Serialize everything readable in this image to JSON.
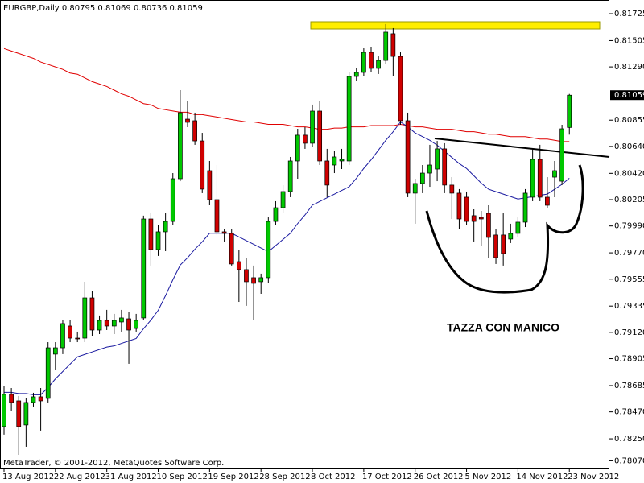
{
  "chart_data": {
    "type": "candlestick",
    "title": "EURGBP,Daily  0.80795 0.81069 0.80736 0.81059",
    "copyright": "MetaTrader, © 2001-2012, MetaQuotes Software Corp.",
    "annotation": "TAZZA CON MANICO",
    "last_price": 0.81059,
    "up_color": "#00c800",
    "down_color": "#d00000",
    "categories": [
      "13 Aug 2012",
      null,
      null,
      null,
      null,
      null,
      null,
      "22 Aug 2012",
      null,
      null,
      null,
      null,
      null,
      null,
      "31 Aug 2012",
      null,
      null,
      null,
      null,
      null,
      null,
      "10 Sep 2012",
      null,
      null,
      null,
      null,
      null,
      null,
      "19 Sep 2012",
      null,
      null,
      null,
      null,
      null,
      null,
      "28 Sep 2012",
      null,
      null,
      null,
      null,
      null,
      null,
      "8 Oct 2012",
      null,
      null,
      null,
      null,
      null,
      null,
      "17 Oct 2012",
      null,
      null,
      null,
      null,
      null,
      null,
      "26 Oct 2012",
      null,
      null,
      null,
      null,
      null,
      null,
      "5 Nov 2012",
      null,
      null,
      null,
      null,
      null,
      null,
      "14 Nov 2012",
      null,
      null,
      null,
      null,
      null,
      null,
      "23 Nov 2012"
    ],
    "open": [
      0.7835,
      0.78613,
      0.7856,
      0.78363,
      0.78547,
      0.78593,
      0.7858,
      0.78942,
      0.78994,
      0.79172,
      0.79073,
      0.79073,
      0.79402,
      0.79139,
      0.79218,
      0.79172,
      0.79205,
      0.79231,
      0.79152,
      0.79238,
      0.80047,
      0.79797,
      0.79942,
      0.80027,
      0.80376,
      0.80863,
      0.8085,
      0.80685,
      0.80442,
      0.80205,
      0.79942,
      0.79929,
      0.79698,
      0.79633,
      0.79567,
      0.79534,
      0.79567,
      0.80027,
      0.80139,
      0.80271,
      0.80521,
      0.80732,
      0.80666,
      0.80929,
      0.80521,
      0.80488,
      0.80521,
      0.80521,
      0.81212,
      0.81245,
      0.81409,
      0.81278,
      0.81343,
      0.81561,
      0.81376,
      0.8085,
      0.80258,
      0.80337,
      0.80422,
      0.80455,
      0.8062,
      0.80324,
      0.80258,
      0.80225,
      0.80074,
      0.8006,
      0.80093,
      0.79916,
      0.79916,
      0.79883,
      0.79929,
      0.80021,
      0.80225,
      0.80534,
      0.80225,
      0.80389,
      0.80356,
      0.80795
    ],
    "high": [
      0.78679,
      0.78665,
      0.786,
      0.7858,
      0.78626,
      0.78665,
      0.7904,
      0.7904,
      0.79218,
      0.79218,
      0.79126,
      0.79534,
      0.79455,
      0.79258,
      0.79304,
      0.79271,
      0.79304,
      0.79284,
      0.79271,
      0.80074,
      0.80093,
      0.79995,
      0.80093,
      0.80422,
      0.811,
      0.81014,
      0.80916,
      0.80751,
      0.80521,
      0.80488,
      0.79962,
      0.79962,
      0.79797,
      0.79731,
      0.79666,
      0.796,
      0.8006,
      0.80192,
      0.80324,
      0.80554,
      0.80784,
      0.80797,
      0.80982,
      0.81014,
      0.8062,
      0.806,
      0.8062,
      0.81245,
      0.81278,
      0.81442,
      0.81455,
      0.81376,
      0.8164,
      0.81607,
      0.81409,
      0.80916,
      0.80376,
      0.80488,
      0.80653,
      0.80685,
      0.80666,
      0.80389,
      0.80291,
      0.80271,
      0.80126,
      0.80113,
      0.80159,
      0.79962,
      0.80093,
      0.80008,
      0.8006,
      0.80291,
      0.8062,
      0.80653,
      0.80389,
      0.80521,
      0.80817,
      0.81069
    ],
    "low": [
      0.78284,
      0.78481,
      0.78119,
      0.78185,
      0.78514,
      0.78317,
      0.78547,
      0.7881,
      0.78942,
      0.7904,
      0.7904,
      0.7904,
      0.79087,
      0.79106,
      0.79139,
      0.79106,
      0.79126,
      0.78863,
      0.79126,
      0.79218,
      0.79666,
      0.79745,
      0.79784,
      0.79995,
      0.80356,
      0.80797,
      0.80653,
      0.80258,
      0.80159,
      0.79916,
      0.79863,
      0.79666,
      0.79369,
      0.79337,
      0.79218,
      0.79435,
      0.79521,
      0.79995,
      0.80093,
      0.80225,
      0.80376,
      0.8062,
      0.80639,
      0.80488,
      0.80225,
      0.80422,
      0.80455,
      0.80488,
      0.81179,
      0.81212,
      0.81245,
      0.81232,
      0.81311,
      0.81212,
      0.80817,
      0.80225,
      0.80008,
      0.80258,
      0.8031,
      0.80356,
      0.80258,
      0.80047,
      0.79962,
      0.79995,
      0.79863,
      0.7983,
      0.79731,
      0.79679,
      0.79666,
      0.7985,
      0.79896,
      0.79981,
      0.80192,
      0.80192,
      0.80139,
      0.80225,
      0.80324,
      0.80736
    ],
    "close": [
      0.78613,
      0.78547,
      0.7835,
      0.78547,
      0.78593,
      0.7856,
      0.78994,
      0.78994,
      0.79192,
      0.79073,
      0.79067,
      0.79402,
      0.79139,
      0.79218,
      0.79172,
      0.79218,
      0.79238,
      0.79139,
      0.79218,
      0.80047,
      0.79797,
      0.79942,
      0.80027,
      0.80376,
      0.80916,
      0.80837,
      0.80685,
      0.80291,
      0.80205,
      0.79942,
      0.79929,
      0.79679,
      0.79633,
      0.79534,
      0.79521,
      0.79567,
      0.80027,
      0.80139,
      0.80271,
      0.80521,
      0.80732,
      0.80666,
      0.80929,
      0.80521,
      0.80324,
      0.80554,
      0.80534,
      0.81212,
      0.81245,
      0.81409,
      0.81278,
      0.81343,
      0.81574,
      0.81376,
      0.8085,
      0.80258,
      0.80337,
      0.80422,
      0.80488,
      0.8062,
      0.80324,
      0.80258,
      0.80047,
      0.80027,
      0.80027,
      0.80047,
      0.79896,
      0.79731,
      0.79764,
      0.79929,
      0.80021,
      0.80258,
      0.80534,
      0.80225,
      0.80159,
      0.80442,
      0.80784,
      0.81059
    ],
    "moving_averages": [
      {
        "color": "#e00000",
        "values": [
          0.8144,
          0.8142,
          0.814,
          0.8138,
          0.8136,
          0.8133,
          0.8131,
          0.8129,
          0.8127,
          0.8124,
          0.8123,
          0.812,
          0.8117,
          0.8115,
          0.8113,
          0.811,
          0.8107,
          0.8105,
          0.8102,
          0.8099,
          0.8098,
          0.8095,
          0.8094,
          0.8093,
          0.8092,
          0.8092,
          0.809,
          0.809,
          0.8089,
          0.8088,
          0.8087,
          0.8086,
          0.8085,
          0.8084,
          0.8084,
          0.8083,
          0.8082,
          0.8082,
          0.8082,
          0.8081,
          0.808,
          0.808,
          0.8079,
          0.8078,
          0.8078,
          0.8079,
          0.8079,
          0.808,
          0.808,
          0.808,
          0.8081,
          0.8081,
          0.8081,
          0.8081,
          0.8082,
          0.8081,
          0.808,
          0.808,
          0.8079,
          0.8078,
          0.8078,
          0.8078,
          0.8077,
          0.8076,
          0.8076,
          0.8075,
          0.8074,
          0.8074,
          0.8073,
          0.8072,
          0.8072,
          0.8072,
          0.8071,
          0.807,
          0.807,
          0.8069,
          0.8068,
          0.8068
        ]
      },
      {
        "color": "#1a1aa0",
        "values": [
          0.7863,
          0.7863,
          0.7862,
          0.7862,
          0.7861,
          0.7861,
          0.7867,
          0.7874,
          0.788,
          0.7886,
          0.7892,
          0.7894,
          0.7896,
          0.7898,
          0.79,
          0.7901,
          0.7903,
          0.7905,
          0.7907,
          0.7915,
          0.7922,
          0.793,
          0.7942,
          0.7955,
          0.7967,
          0.7973,
          0.798,
          0.7986,
          0.7993,
          0.7993,
          0.7993,
          0.7993,
          0.799,
          0.7987,
          0.7984,
          0.7981,
          0.7978,
          0.7983,
          0.7988,
          0.7993,
          0.8001,
          0.8008,
          0.8016,
          0.8019,
          0.8022,
          0.8025,
          0.8028,
          0.8031,
          0.8038,
          0.8046,
          0.8053,
          0.8061,
          0.8069,
          0.8076,
          0.8084,
          0.808,
          0.8075,
          0.8072,
          0.8069,
          0.8065,
          0.806,
          0.8055,
          0.805,
          0.8046,
          0.804,
          0.8034,
          0.8029,
          0.8027,
          0.8025,
          0.8023,
          0.8021,
          0.8022,
          0.8023,
          0.8024,
          0.8025,
          0.8029,
          0.8033,
          0.8038
        ]
      }
    ],
    "ylim": [
      0.78007,
      0.81837
    ],
    "yticks": [
      0.81725,
      0.81505,
      {
        "value": 0.8129,
        "label": "0.81290"
      },
      0.80855,
      {
        "value": 0.8064,
        "label": "0.80640"
      },
      {
        "value": 0.8042,
        "label": "0.80420"
      },
      0.80205,
      {
        "value": 0.7999,
        "label": "0.79990"
      },
      {
        "value": 0.7977,
        "label": "0.79770"
      },
      0.79555,
      0.79335,
      {
        "value": 0.7912,
        "label": "0.79120"
      },
      0.78905,
      0.78685,
      {
        "value": 0.7847,
        "label": "0.78470"
      },
      {
        "value": 0.7825,
        "label": "0.78250"
      },
      {
        "value": 0.7807,
        "label": "0.78070"
      }
    ]
  }
}
